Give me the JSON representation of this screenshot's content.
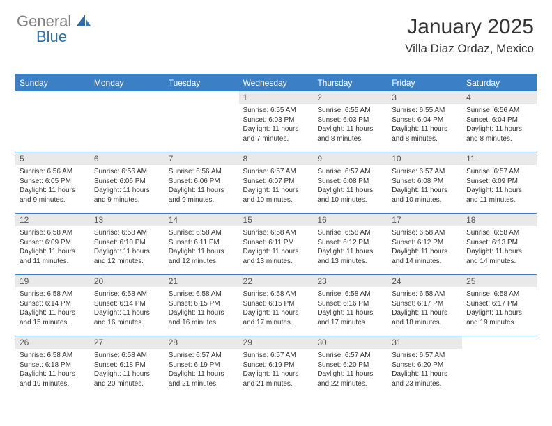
{
  "logo": {
    "text1": "General",
    "text2": "Blue"
  },
  "header": {
    "month": "January 2025",
    "location": "Villa Diaz Ordaz, Mexico"
  },
  "colors": {
    "headerBar": "#3b7fc4",
    "headerText": "#ffffff",
    "dayNumBg": "#e9e9e9",
    "logoGray": "#808080",
    "logoBlue": "#2f6faf",
    "rowBorder": "#3b7fc4"
  },
  "dayNames": [
    "Sunday",
    "Monday",
    "Tuesday",
    "Wednesday",
    "Thursday",
    "Friday",
    "Saturday"
  ],
  "layout": {
    "startOffset": 3,
    "weeks": 5
  },
  "days": [
    {
      "n": "1",
      "sr": "6:55 AM",
      "ss": "6:03 PM",
      "dl": "11 hours and 7 minutes."
    },
    {
      "n": "2",
      "sr": "6:55 AM",
      "ss": "6:03 PM",
      "dl": "11 hours and 8 minutes."
    },
    {
      "n": "3",
      "sr": "6:55 AM",
      "ss": "6:04 PM",
      "dl": "11 hours and 8 minutes."
    },
    {
      "n": "4",
      "sr": "6:56 AM",
      "ss": "6:04 PM",
      "dl": "11 hours and 8 minutes."
    },
    {
      "n": "5",
      "sr": "6:56 AM",
      "ss": "6:05 PM",
      "dl": "11 hours and 9 minutes."
    },
    {
      "n": "6",
      "sr": "6:56 AM",
      "ss": "6:06 PM",
      "dl": "11 hours and 9 minutes."
    },
    {
      "n": "7",
      "sr": "6:56 AM",
      "ss": "6:06 PM",
      "dl": "11 hours and 9 minutes."
    },
    {
      "n": "8",
      "sr": "6:57 AM",
      "ss": "6:07 PM",
      "dl": "11 hours and 10 minutes."
    },
    {
      "n": "9",
      "sr": "6:57 AM",
      "ss": "6:08 PM",
      "dl": "11 hours and 10 minutes."
    },
    {
      "n": "10",
      "sr": "6:57 AM",
      "ss": "6:08 PM",
      "dl": "11 hours and 10 minutes."
    },
    {
      "n": "11",
      "sr": "6:57 AM",
      "ss": "6:09 PM",
      "dl": "11 hours and 11 minutes."
    },
    {
      "n": "12",
      "sr": "6:58 AM",
      "ss": "6:09 PM",
      "dl": "11 hours and 11 minutes."
    },
    {
      "n": "13",
      "sr": "6:58 AM",
      "ss": "6:10 PM",
      "dl": "11 hours and 12 minutes."
    },
    {
      "n": "14",
      "sr": "6:58 AM",
      "ss": "6:11 PM",
      "dl": "11 hours and 12 minutes."
    },
    {
      "n": "15",
      "sr": "6:58 AM",
      "ss": "6:11 PM",
      "dl": "11 hours and 13 minutes."
    },
    {
      "n": "16",
      "sr": "6:58 AM",
      "ss": "6:12 PM",
      "dl": "11 hours and 13 minutes."
    },
    {
      "n": "17",
      "sr": "6:58 AM",
      "ss": "6:12 PM",
      "dl": "11 hours and 14 minutes."
    },
    {
      "n": "18",
      "sr": "6:58 AM",
      "ss": "6:13 PM",
      "dl": "11 hours and 14 minutes."
    },
    {
      "n": "19",
      "sr": "6:58 AM",
      "ss": "6:14 PM",
      "dl": "11 hours and 15 minutes."
    },
    {
      "n": "20",
      "sr": "6:58 AM",
      "ss": "6:14 PM",
      "dl": "11 hours and 16 minutes."
    },
    {
      "n": "21",
      "sr": "6:58 AM",
      "ss": "6:15 PM",
      "dl": "11 hours and 16 minutes."
    },
    {
      "n": "22",
      "sr": "6:58 AM",
      "ss": "6:15 PM",
      "dl": "11 hours and 17 minutes."
    },
    {
      "n": "23",
      "sr": "6:58 AM",
      "ss": "6:16 PM",
      "dl": "11 hours and 17 minutes."
    },
    {
      "n": "24",
      "sr": "6:58 AM",
      "ss": "6:17 PM",
      "dl": "11 hours and 18 minutes."
    },
    {
      "n": "25",
      "sr": "6:58 AM",
      "ss": "6:17 PM",
      "dl": "11 hours and 19 minutes."
    },
    {
      "n": "26",
      "sr": "6:58 AM",
      "ss": "6:18 PM",
      "dl": "11 hours and 19 minutes."
    },
    {
      "n": "27",
      "sr": "6:58 AM",
      "ss": "6:18 PM",
      "dl": "11 hours and 20 minutes."
    },
    {
      "n": "28",
      "sr": "6:57 AM",
      "ss": "6:19 PM",
      "dl": "11 hours and 21 minutes."
    },
    {
      "n": "29",
      "sr": "6:57 AM",
      "ss": "6:19 PM",
      "dl": "11 hours and 21 minutes."
    },
    {
      "n": "30",
      "sr": "6:57 AM",
      "ss": "6:20 PM",
      "dl": "11 hours and 22 minutes."
    },
    {
      "n": "31",
      "sr": "6:57 AM",
      "ss": "6:20 PM",
      "dl": "11 hours and 23 minutes."
    }
  ],
  "labels": {
    "sunrise": "Sunrise:",
    "sunset": "Sunset:",
    "daylight": "Daylight:"
  }
}
